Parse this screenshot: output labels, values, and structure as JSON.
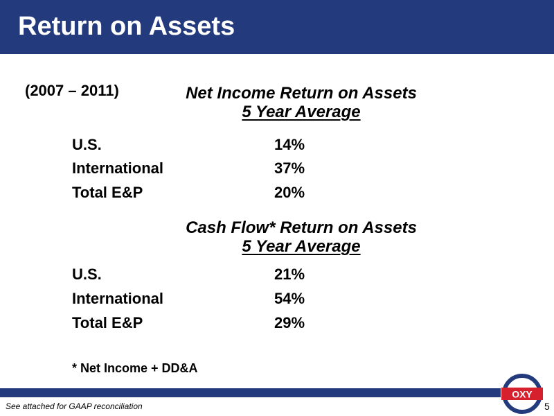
{
  "slide": {
    "title": "Return on Assets",
    "period": "(2007 – 2011)",
    "page_number": "5"
  },
  "net_income": {
    "heading_line1": "Net Income Return on Assets",
    "heading_line2": "5  Year Average",
    "rows": [
      {
        "label": "U.S.",
        "value": "14%"
      },
      {
        "label": "International",
        "value": "37%"
      },
      {
        "label": "Total E&P",
        "value": "20%"
      }
    ]
  },
  "cash_flow": {
    "heading_line1": "Cash Flow* Return on Assets",
    "heading_line2": "5  Year Average",
    "rows": [
      {
        "label": "U.S.",
        "value": "21%"
      },
      {
        "label": "International",
        "value": "54%"
      },
      {
        "label": "Total E&P",
        "value": "29%"
      }
    ]
  },
  "footnote": "* Net Income + DD&A",
  "footer": {
    "note": "See attached for GAAP reconciliation"
  },
  "logo": {
    "text": "OXY",
    "icon": "oxy-logo-icon"
  },
  "colors": {
    "brand_navy": "#233a7d",
    "logo_red": "#d6202e"
  }
}
